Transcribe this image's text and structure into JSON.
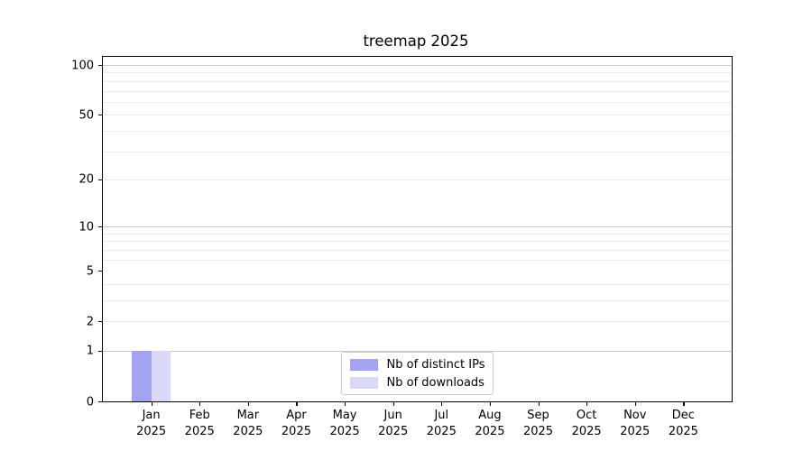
{
  "figure": {
    "title": "treemap 2025"
  },
  "chart_data": {
    "type": "bar",
    "title": "treemap 2025",
    "x_categories": [
      "Jan",
      "Feb",
      "Mar",
      "Apr",
      "May",
      "Jun",
      "Jul",
      "Aug",
      "Sep",
      "Oct",
      "Nov",
      "Dec"
    ],
    "x_year": "2025",
    "series": [
      {
        "name": "Nb of distinct IPs",
        "color": "#a3a3f0",
        "values": [
          1,
          0,
          0,
          0,
          0,
          0,
          0,
          0,
          0,
          0,
          0,
          0
        ]
      },
      {
        "name": "Nb of downloads",
        "color": "#dadaf8",
        "values": [
          1,
          0,
          0,
          0,
          0,
          0,
          0,
          0,
          0,
          0,
          0,
          0
        ]
      }
    ],
    "yscale": "log1p",
    "ylim": [
      0,
      112
    ],
    "yticks": [
      0,
      1,
      2,
      5,
      10,
      20,
      50,
      100
    ],
    "grid_minor": [
      2,
      3,
      4,
      6,
      7,
      8,
      9,
      20,
      30,
      40,
      50,
      60,
      70,
      80,
      90
    ],
    "grid_major": [
      1,
      10,
      100
    ],
    "grid": true,
    "legend_position": "lower center",
    "colors": {
      "minor_grid": "#ececec",
      "major_grid": "#c9c9c9",
      "axis": "#000000",
      "legend_border": "#cccccc",
      "background": "#ffffff"
    }
  }
}
